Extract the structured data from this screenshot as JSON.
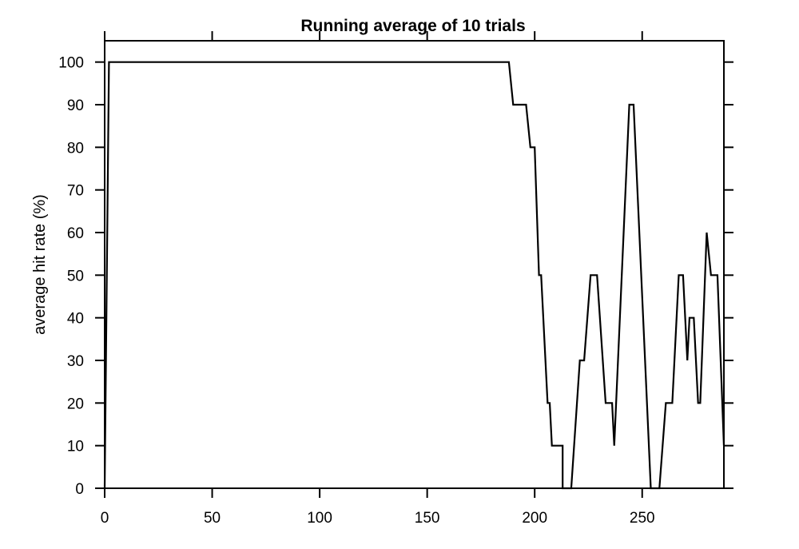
{
  "chart_data": {
    "type": "line",
    "title": "Running average of 10 trials",
    "xlabel": "",
    "ylabel": "average hit rate (%)",
    "xlim": [
      0,
      288
    ],
    "ylim": [
      0,
      105
    ],
    "x_ticks": [
      0,
      50,
      100,
      150,
      200,
      250
    ],
    "y_ticks": [
      0,
      10,
      20,
      30,
      40,
      50,
      60,
      70,
      80,
      90,
      100
    ],
    "grid": false,
    "legend": "none",
    "series": [
      {
        "color": "#000000",
        "points": [
          [
            0,
            0
          ],
          [
            2,
            100
          ],
          [
            188,
            100
          ],
          [
            190,
            90
          ],
          [
            196,
            90
          ],
          [
            198,
            80
          ],
          [
            200,
            80
          ],
          [
            202,
            50
          ],
          [
            203,
            50
          ],
          [
            206,
            20
          ],
          [
            207,
            20
          ],
          [
            208,
            10
          ],
          [
            213,
            10
          ],
          [
            213,
            0
          ],
          [
            217,
            0
          ],
          [
            221,
            30
          ],
          [
            223,
            30
          ],
          [
            226,
            50
          ],
          [
            229,
            50
          ],
          [
            233,
            20
          ],
          [
            236,
            20
          ],
          [
            237,
            10
          ],
          [
            244,
            90
          ],
          [
            246,
            90
          ],
          [
            254,
            0
          ],
          [
            258,
            0
          ],
          [
            261,
            20
          ],
          [
            264,
            20
          ],
          [
            267,
            50
          ],
          [
            269,
            50
          ],
          [
            271,
            30
          ],
          [
            272,
            40
          ],
          [
            274,
            40
          ],
          [
            276,
            20
          ],
          [
            277,
            20
          ],
          [
            280,
            60
          ],
          [
            282,
            50
          ],
          [
            285,
            50
          ],
          [
            288,
            10
          ]
        ]
      }
    ]
  }
}
